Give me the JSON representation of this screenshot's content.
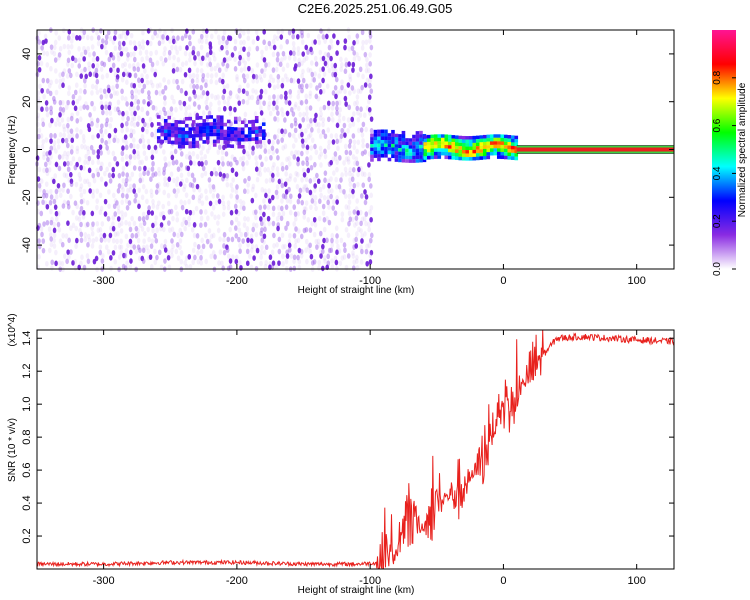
{
  "title": "C2E6.2025.251.06.49.G05",
  "chart_data": [
    {
      "type": "heatmap",
      "xlabel": "Height of straight line (km)",
      "ylabel": "Frequency (Hz)",
      "xlim": [
        -350,
        128
      ],
      "ylim": [
        -50,
        50
      ],
      "xticks": [
        -300,
        -200,
        -100,
        0,
        100
      ],
      "yticks": [
        -40,
        -20,
        0,
        20,
        40
      ],
      "colorbar": {
        "label": "Normalized spectral amplitude",
        "range": [
          0,
          1
        ],
        "ticks": [
          0.0,
          0.2,
          0.4,
          0.6,
          0.8
        ],
        "colormap": [
          "#ffffff",
          "#8a2be2",
          "#0000ff",
          "#00ffff",
          "#00ff00",
          "#ffff00",
          "#ff0000",
          "#ff1493"
        ]
      },
      "noise_region": {
        "x": [
          -350,
          -98
        ],
        "y": [
          -50,
          50
        ],
        "amplitude": 0.1
      },
      "features": [
        {
          "x": [
            -260,
            -180
          ],
          "y": [
            2,
            14
          ],
          "amplitude": 0.25
        },
        {
          "x": [
            -100,
            -60
          ],
          "y": [
            -5,
            8
          ],
          "amplitude": 0.4
        },
        {
          "x": [
            -60,
            10
          ],
          "y": [
            -3,
            6
          ],
          "amplitude": 0.8
        }
      ],
      "signal_line": {
        "x": [
          10,
          128
        ],
        "y": 0,
        "amplitude": 0.95
      }
    },
    {
      "type": "line",
      "xlabel": "Height of straight line (km)",
      "ylabel": "SNR (10 * v/v)",
      "y_multiplier": "(x10^4)",
      "xlim": [
        -350,
        128
      ],
      "ylim": [
        0,
        1.45
      ],
      "xticks": [
        -300,
        -200,
        -100,
        0,
        100
      ],
      "yticks": [
        0.2,
        0.4,
        0.6,
        0.8,
        1.0,
        1.2,
        1.4
      ],
      "series": [
        {
          "color": "#e8211d",
          "x": [
            -350,
            -300,
            -250,
            -200,
            -150,
            -110,
            -90,
            -80,
            -70,
            -60,
            -50,
            -40,
            -30,
            -20,
            -10,
            0,
            10,
            20,
            30,
            40,
            60,
            80,
            100,
            128
          ],
          "y": [
            0.03,
            0.03,
            0.04,
            0.04,
            0.03,
            0.03,
            0.04,
            0.1,
            0.3,
            0.25,
            0.4,
            0.45,
            0.5,
            0.6,
            0.8,
            0.95,
            1.05,
            1.2,
            1.3,
            1.4,
            1.41,
            1.4,
            1.39,
            1.38
          ]
        }
      ]
    }
  ]
}
